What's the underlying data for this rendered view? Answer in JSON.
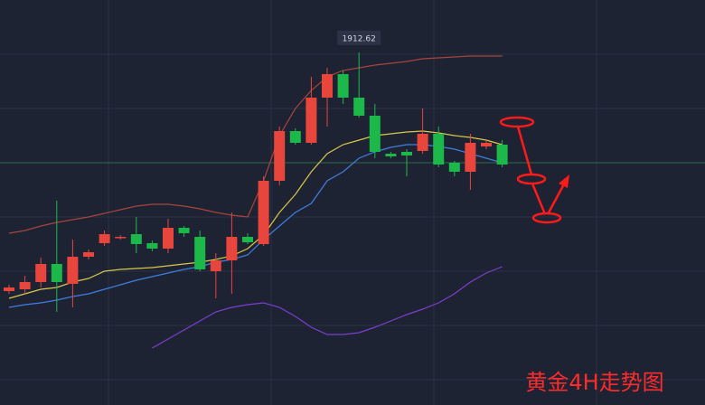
{
  "chart_data": {
    "type": "candlestick",
    "title": "黄金4H走势图",
    "up_color": "#e8453c",
    "down_color": "#1db84a",
    "ylim": [
      1834.6,
      1924.2
    ],
    "open": [
      1859.8,
      1860.2,
      1861.8,
      1865.8,
      1861.4,
      1867.4,
      1870.4,
      1871.6,
      1872.4,
      1870.4,
      1869.2,
      1873.8,
      1871.8,
      1864.2,
      1866.6,
      1871.8,
      1870.2,
      1884.2,
      1895.2,
      1892.6,
      1902.6,
      1907.8,
      1902.6,
      1898.6,
      1890.2,
      1890.6,
      1890.8,
      1894.6,
      1888.2,
      1886.2,
      1891.8,
      1892.2
    ],
    "high": [
      1861.2,
      1863.2,
      1867.2,
      1879.8,
      1871.2,
      1869.0,
      1873.2,
      1872.2,
      1876.2,
      1871.0,
      1875.8,
      1874.2,
      1873.2,
      1868.2,
      1877.2,
      1872.6,
      1885.2,
      1896.2,
      1895.8,
      1907.2,
      1909.2,
      1908.6,
      1912.62,
      1901.2,
      1890.6,
      1891.2,
      1900.2,
      1896.2,
      1888.6,
      1894.6,
      1893.2,
      1893.2
    ],
    "low": [
      1859.2,
      1859.2,
      1860.6,
      1855.2,
      1856.2,
      1866.8,
      1869.8,
      1871.2,
      1868.2,
      1868.6,
      1868.2,
      1871.8,
      1864.2,
      1858.2,
      1859.2,
      1870.2,
      1869.8,
      1883.2,
      1892.2,
      1892.2,
      1896.2,
      1901.2,
      1898.2,
      1889.2,
      1889.2,
      1885.2,
      1890.2,
      1887.2,
      1885.2,
      1882.2,
      1891.2,
      1887.2
    ],
    "close": [
      1860.6,
      1861.8,
      1865.8,
      1861.8,
      1867.4,
      1868.4,
      1872.4,
      1871.8,
      1870.2,
      1869.2,
      1873.8,
      1872.6,
      1864.6,
      1866.6,
      1871.8,
      1870.6,
      1884.2,
      1895.2,
      1892.6,
      1902.6,
      1907.8,
      1902.6,
      1898.6,
      1890.6,
      1889.6,
      1889.8,
      1894.6,
      1887.8,
      1886.2,
      1892.6,
      1892.6,
      1887.8
    ],
    "series": [
      {
        "color": "#a8443c",
        "values": [
          1872.6,
          1873.2,
          1874.2,
          1875.0,
          1875.6,
          1876.2,
          1877.0,
          1877.8,
          1878.6,
          1879.0,
          1879.0,
          1878.6,
          1878.0,
          1877.2,
          1876.6,
          1876.2,
          1884.2,
          1894.2,
          1900.2,
          1904.2,
          1907.2,
          1908.6,
          1909.2,
          1909.8,
          1910.2,
          1910.6,
          1911.2,
          1911.4,
          1911.6,
          1911.8,
          1911.8,
          1911.8
        ]
      },
      {
        "color": "#7b3fd0",
        "values": [
          null,
          null,
          null,
          null,
          null,
          null,
          null,
          null,
          null,
          1847.2,
          1849.2,
          1851.2,
          1853.2,
          1855.2,
          1856.2,
          1856.8,
          1857.2,
          1856.2,
          1854.2,
          1851.8,
          1850.2,
          1850.2,
          1850.6,
          1851.8,
          1853.2,
          1854.6,
          1855.8,
          1857.2,
          1859.2,
          1861.8,
          1863.8,
          1865.2
        ]
      },
      {
        "color": "#3f7fe0",
        "values": [
          1856.2,
          1856.8,
          1857.2,
          1857.8,
          1858.6,
          1859.2,
          1860.2,
          1861.2,
          1862.2,
          1863.0,
          1863.8,
          1864.6,
          1865.2,
          1866.2,
          1866.8,
          1867.8,
          1871.2,
          1874.2,
          1877.2,
          1879.2,
          1884.2,
          1886.2,
          1889.2,
          1890.6,
          1891.6,
          1892.2,
          1892.2,
          1891.8,
          1891.2,
          1890.2,
          1889.2,
          1888.2
        ]
      },
      {
        "color": "#d8c84a",
        "values": [
          1858.2,
          1859.2,
          1860.2,
          1860.6,
          1861.8,
          1862.6,
          1864.2,
          1864.6,
          1864.8,
          1865.0,
          1865.4,
          1865.8,
          1866.2,
          1866.8,
          1867.6,
          1869.2,
          1872.2,
          1877.2,
          1881.2,
          1886.2,
          1890.2,
          1892.2,
          1893.2,
          1894.2,
          1894.6,
          1895.0,
          1895.2,
          1894.8,
          1894.2,
          1893.8,
          1893.2,
          1892.2
        ]
      }
    ]
  }
}
